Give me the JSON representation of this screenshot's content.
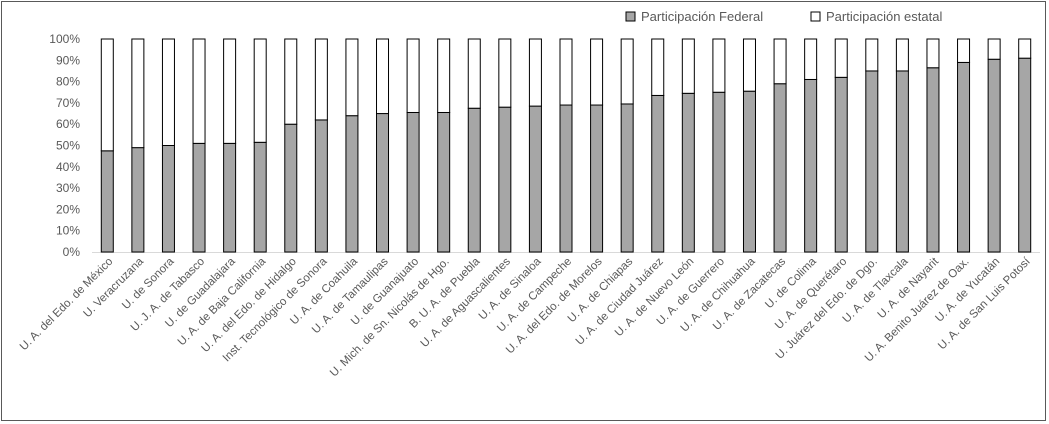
{
  "chart_data": {
    "type": "bar",
    "stacked": true,
    "percent_stacked": true,
    "title": "",
    "xlabel": "",
    "ylabel": "",
    "ylim": [
      0,
      100
    ],
    "grid": false,
    "legend_position": "top-right",
    "y_ticks": [
      "0%",
      "10%",
      "20%",
      "30%",
      "40%",
      "50%",
      "60%",
      "70%",
      "80%",
      "90%",
      "100%"
    ],
    "categories": [
      "U. A. del Edo. de México",
      "U. Veracruzana",
      "U. de Sonora",
      "U. J. A. de Tabasco",
      "U. de Guadalajara",
      "U. A. de Baja California",
      "U. A. del Edo. de Hidalgo",
      "Inst. Tecnológico de Sonora",
      "U. A. de Coahuila",
      "U. A. de Tamaulipas",
      "U. de Guanajuato",
      "U. Mich. de Sn. Nicolás de Hgo.",
      "B. U. A. de Puebla",
      "U. A. de Aguascalientes",
      "U. A. de Sinaloa",
      "U. A. de Campeche",
      "U. A. del Edo. de Morelos",
      "U. A. de Chiapas",
      "U. A. de Ciudad Juárez",
      "U. A. de Nuevo León",
      "U. A. de Guerrero",
      "U. A. de Chihuahua",
      "U. A. de Zacatecas",
      "U. de Colima",
      "U. A. de Querétaro",
      "U. Juárez del Edo. de Dgo.",
      "U. A. de Tlaxcala",
      "U. A. de Nayarit",
      "U. A. Benito Juárez de Oax.",
      "U. A. de Yucatán",
      "U. A. de San Luis Potosí"
    ],
    "series": [
      {
        "name": "Participación Federal",
        "color": "#a6a6a6",
        "values": [
          47.5,
          49,
          50,
          51,
          51,
          51.5,
          60,
          62,
          64,
          65,
          65.5,
          65.5,
          67.5,
          68,
          68.5,
          69,
          69,
          69.5,
          73.5,
          74.5,
          75,
          75.5,
          79,
          81,
          82,
          85,
          85,
          86.5,
          89,
          90.5,
          91
        ]
      },
      {
        "name": "Participación estatal",
        "color": "#ffffff",
        "values": [
          52.5,
          51,
          50,
          49,
          49,
          48.5,
          40,
          38,
          36,
          35,
          34.5,
          34.5,
          32.5,
          32,
          31.5,
          31,
          31,
          30.5,
          26.5,
          25.5,
          25,
          24.5,
          21,
          19,
          18,
          15,
          15,
          13.5,
          11,
          9.5,
          9
        ]
      }
    ]
  }
}
